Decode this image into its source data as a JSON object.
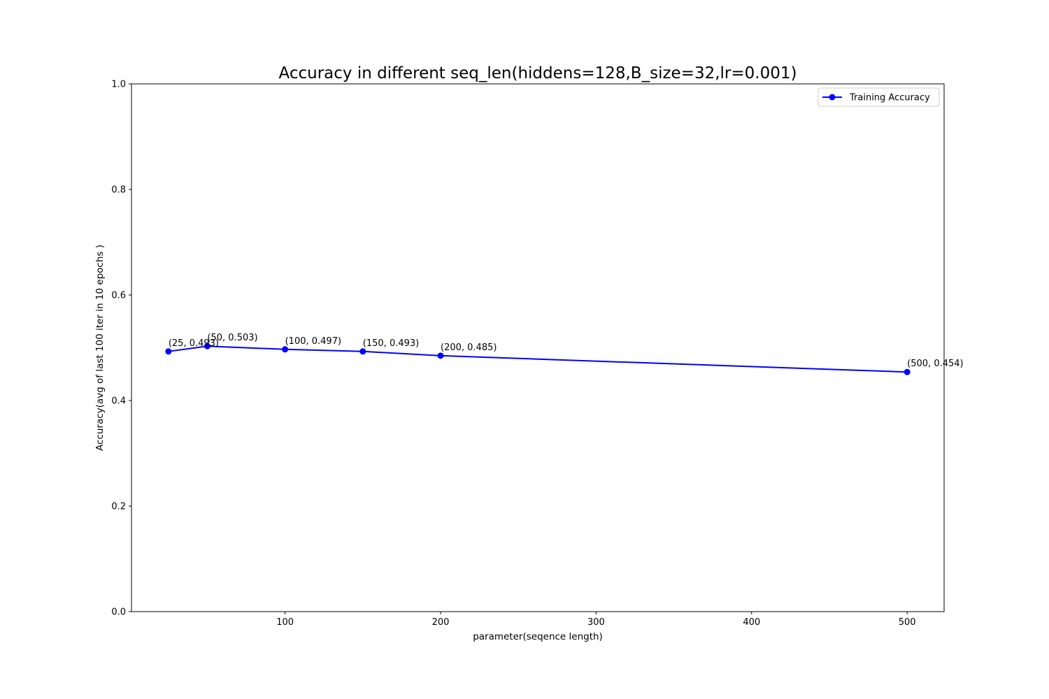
{
  "chart_data": {
    "type": "line",
    "title": "Accuracy in different seq_len(hiddens=128,B_size=32,lr=0.001)",
    "xlabel": "parameter(seqence length)",
    "ylabel": "Accuracy(avg of last 100 iter in 10 epochs )",
    "xlim": [
      1.25,
      523.75
    ],
    "ylim": [
      0.0,
      1.0
    ],
    "x_ticks": [
      100,
      200,
      300,
      400,
      500
    ],
    "x_tick_labels": [
      "100",
      "200",
      "300",
      "400",
      "500"
    ],
    "y_ticks": [
      0.0,
      0.2,
      0.4,
      0.6,
      0.8,
      1.0
    ],
    "y_tick_labels": [
      "0.0",
      "0.2",
      "0.4",
      "0.6",
      "0.8",
      "1.0"
    ],
    "grid": false,
    "legend_position": "top-right",
    "series": [
      {
        "name": "Training Accuracy",
        "color": "#0000ff",
        "marker": "circle",
        "x": [
          25,
          50,
          100,
          150,
          200,
          500
        ],
        "y": [
          0.493,
          0.503,
          0.497,
          0.493,
          0.485,
          0.454
        ],
        "point_labels": [
          "(25, 0.493)",
          "(50, 0.503)",
          "(100, 0.497)",
          "(150, 0.493)",
          "(200, 0.485)",
          "(500, 0.454)"
        ]
      }
    ]
  }
}
